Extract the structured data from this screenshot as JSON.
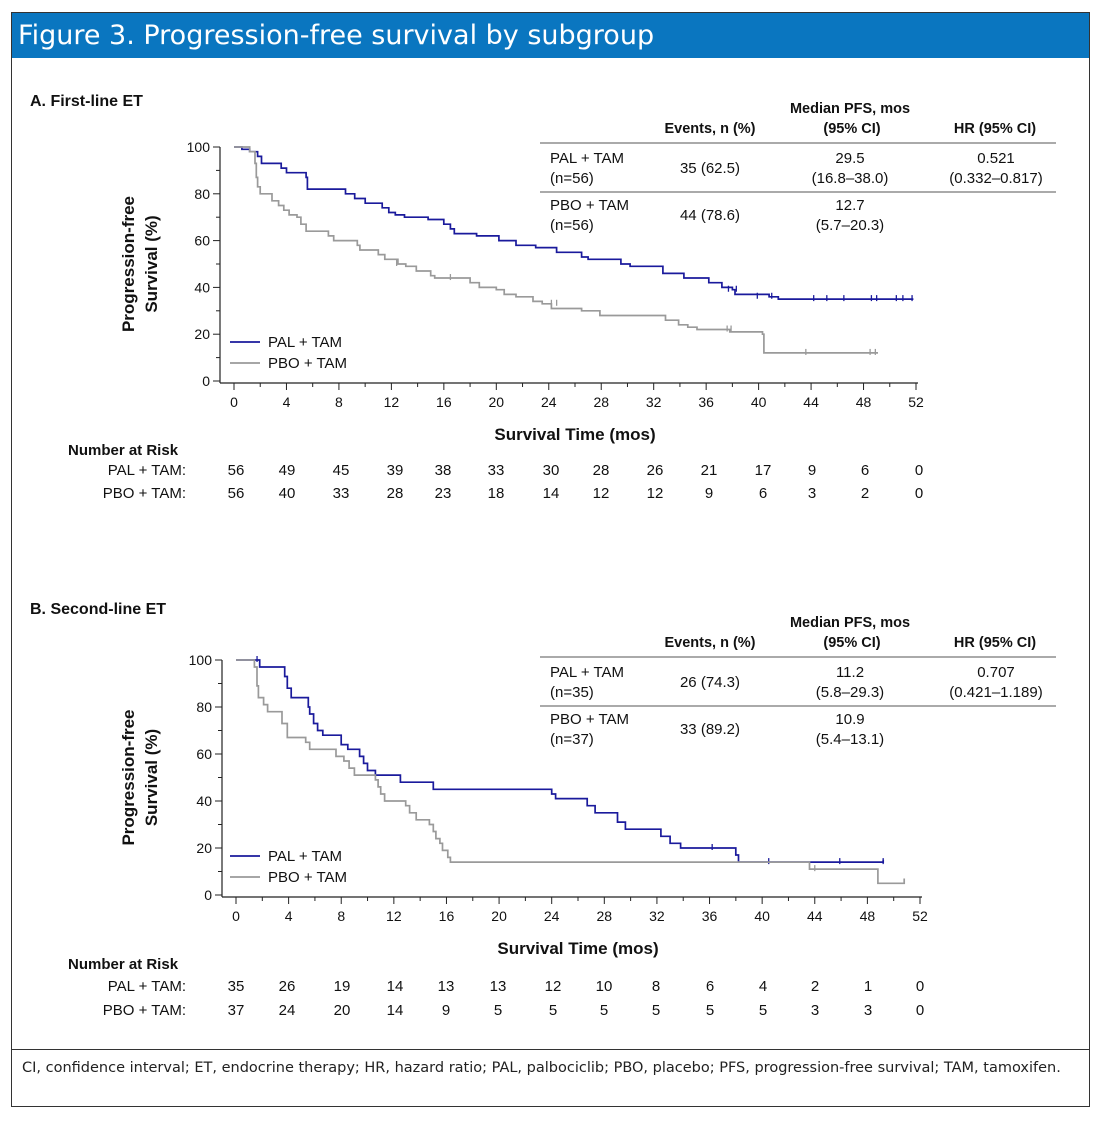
{
  "figure_title": "Figure 3. Progression-free survival by subgroup",
  "footnote": "CI, confidence interval; ET, endocrine therapy; HR, hazard ratio; PAL, palbociclib; PBO, placebo; PFS, progression-free survival; TAM, tamoxifen.",
  "colors": {
    "pal": "#1a1a9c",
    "pbo": "#9a9a9a",
    "header": "#0a76c0"
  },
  "chart_data": [
    {
      "type": "line",
      "panel_title": "A. First-line ET",
      "xlabel": "Survival Time (mos)",
      "ylabel_line1": "Progression-free",
      "ylabel_line2": "Survival (%)",
      "xlim": [
        0,
        52
      ],
      "ylim": [
        0,
        100
      ],
      "xticks": [
        0,
        4,
        8,
        12,
        16,
        20,
        24,
        28,
        32,
        36,
        40,
        44,
        48,
        52
      ],
      "yticks": [
        0,
        20,
        40,
        60,
        80,
        100
      ],
      "legend": [
        "PAL + TAM",
        "PBO + TAM"
      ],
      "table": {
        "headers": [
          "Events, n (%)",
          "Median PFS, mos",
          "(95% CI)",
          "HR (95% CI)"
        ],
        "rows": [
          {
            "arm": "PAL + TAM",
            "n": "(n=56)",
            "events": "35 (62.5)",
            "median": "29.5",
            "median_ci": "(16.8–38.0)",
            "hr": "0.521",
            "hr_ci": "(0.332–0.817)"
          },
          {
            "arm": "PBO + TAM",
            "n": "(n=56)",
            "events": "44 (78.6)",
            "median": "12.7",
            "median_ci": "(5.7–20.3)",
            "hr": "",
            "hr_ci": ""
          }
        ]
      },
      "risk": {
        "title": "Number at Risk",
        "rows": [
          {
            "label": "PAL + TAM:",
            "values": [
              "56",
              "49",
              "45",
              "39",
              "38",
              "33",
              "30",
              "28",
              "26",
              "21",
              "17",
              "9",
              "6",
              "0"
            ]
          },
          {
            "label": "PBO + TAM:",
            "values": [
              "56",
              "40",
              "33",
              "28",
              "23",
              "18",
              "14",
              "12",
              "12",
              "9",
              "6",
              "3",
              "2",
              "0"
            ]
          }
        ]
      },
      "series": [
        {
          "name": "PAL + TAM",
          "points": [
            [
              0,
              100
            ],
            [
              0.6,
              99
            ],
            [
              1.2,
              98
            ],
            [
              1.8,
              96
            ],
            [
              2.1,
              93
            ],
            [
              3.6,
              91
            ],
            [
              4,
              89
            ],
            [
              5.5,
              87
            ],
            [
              5.6,
              82
            ],
            [
              8.5,
              80
            ],
            [
              9.2,
              78
            ],
            [
              10,
              76
            ],
            [
              11.3,
              74
            ],
            [
              11.8,
              72
            ],
            [
              12.3,
              71
            ],
            [
              13,
              70
            ],
            [
              14.8,
              69
            ],
            [
              16,
              67
            ],
            [
              16.5,
              65
            ],
            [
              16.8,
              63
            ],
            [
              18.5,
              62
            ],
            [
              20.2,
              60
            ],
            [
              21.5,
              58
            ],
            [
              23,
              57
            ],
            [
              24.6,
              55
            ],
            [
              26.5,
              53
            ],
            [
              27,
              52
            ],
            [
              29.5,
              50
            ],
            [
              30.2,
              49
            ],
            [
              32.7,
              46
            ],
            [
              34.3,
              44
            ],
            [
              36.2,
              42
            ],
            [
              37.2,
              40
            ],
            [
              38,
              39
            ],
            [
              38.2,
              37
            ],
            [
              40.8,
              36
            ],
            [
              41.5,
              35
            ],
            [
              51.8,
              35
            ]
          ],
          "censors": [
            [
              37.7,
              39
            ],
            [
              38.3,
              39
            ],
            [
              39.9,
              36
            ],
            [
              41,
              36
            ],
            [
              44.2,
              35
            ],
            [
              45.2,
              35
            ],
            [
              46.5,
              35
            ],
            [
              48.6,
              35
            ],
            [
              49,
              35
            ],
            [
              50.5,
              35
            ],
            [
              51,
              35
            ],
            [
              51.7,
              35
            ]
          ]
        },
        {
          "name": "PBO + TAM",
          "points": [
            [
              0,
              100
            ],
            [
              1.2,
              98
            ],
            [
              1.6,
              93
            ],
            [
              1.7,
              87
            ],
            [
              1.8,
              83
            ],
            [
              2,
              80
            ],
            [
              2.9,
              77
            ],
            [
              3.4,
              75
            ],
            [
              3.8,
              73
            ],
            [
              4.2,
              71
            ],
            [
              4.8,
              70
            ],
            [
              5.1,
              67
            ],
            [
              5.5,
              64
            ],
            [
              7.2,
              62
            ],
            [
              7.6,
              60
            ],
            [
              9.4,
              58
            ],
            [
              9.6,
              56
            ],
            [
              11,
              54
            ],
            [
              11.5,
              52
            ],
            [
              12.5,
              50
            ],
            [
              13.1,
              49
            ],
            [
              13.9,
              47
            ],
            [
              15,
              45
            ],
            [
              15.3,
              44
            ],
            [
              18,
              42
            ],
            [
              18.7,
              40
            ],
            [
              20,
              39
            ],
            [
              20.6,
              37
            ],
            [
              21.5,
              36
            ],
            [
              22.8,
              34
            ],
            [
              23.5,
              33
            ],
            [
              24.2,
              31
            ],
            [
              26.5,
              30
            ],
            [
              27.9,
              28
            ],
            [
              32.9,
              26
            ],
            [
              33.9,
              24
            ],
            [
              34.6,
              23
            ],
            [
              35.3,
              22
            ],
            [
              37.8,
              21
            ],
            [
              40.3,
              20
            ],
            [
              40.4,
              12
            ],
            [
              49.1,
              12
            ]
          ],
          "censors": [
            [
              12.4,
              50
            ],
            [
              16.5,
              44
            ],
            [
              24.2,
              33
            ],
            [
              24.6,
              33
            ],
            [
              37.6,
              22
            ],
            [
              37.9,
              22
            ],
            [
              43.6,
              12
            ],
            [
              48.5,
              12
            ],
            [
              48.9,
              12
            ]
          ]
        }
      ]
    },
    {
      "type": "line",
      "panel_title": "B. Second-line ET",
      "xlabel": "Survival Time (mos)",
      "ylabel_line1": "Progression-free",
      "ylabel_line2": "Survival (%)",
      "xlim": [
        0,
        52
      ],
      "ylim": [
        0,
        100
      ],
      "xticks": [
        0,
        4,
        8,
        12,
        16,
        20,
        24,
        28,
        32,
        36,
        40,
        44,
        48,
        52
      ],
      "yticks": [
        0,
        20,
        40,
        60,
        80,
        100
      ],
      "legend": [
        "PAL + TAM",
        "PBO + TAM"
      ],
      "table": {
        "headers": [
          "Events, n (%)",
          "Median PFS, mos",
          "(95% CI)",
          "HR (95% CI)"
        ],
        "rows": [
          {
            "arm": "PAL + TAM",
            "n": "(n=35)",
            "events": "26 (74.3)",
            "median": "11.2",
            "median_ci": "(5.8–29.3)",
            "hr": "0.707",
            "hr_ci": "(0.421–1.189)"
          },
          {
            "arm": "PBO + TAM",
            "n": "(n=37)",
            "events": "33 (89.2)",
            "median": "10.9",
            "median_ci": "(5.4–13.1)",
            "hr": "",
            "hr_ci": ""
          }
        ]
      },
      "risk": {
        "title": "Number at Risk",
        "rows": [
          {
            "label": "PAL + TAM:",
            "values": [
              "35",
              "26",
              "19",
              "14",
              "13",
              "13",
              "12",
              "10",
              "8",
              "6",
              "4",
              "2",
              "1",
              "0"
            ]
          },
          {
            "label": "PBO + TAM:",
            "values": [
              "37",
              "24",
              "20",
              "14",
              "9",
              "5",
              "5",
              "5",
              "5",
              "5",
              "5",
              "3",
              "3",
              "0"
            ]
          }
        ]
      },
      "series": [
        {
          "name": "PAL + TAM",
          "points": [
            [
              0,
              100
            ],
            [
              1.6,
              100
            ],
            [
              1.8,
              97
            ],
            [
              3.7,
              93
            ],
            [
              3.9,
              88
            ],
            [
              4.2,
              84
            ],
            [
              5.5,
              80
            ],
            [
              5.6,
              77
            ],
            [
              5.9,
              73
            ],
            [
              6.2,
              70
            ],
            [
              6.6,
              68
            ],
            [
              8,
              64
            ],
            [
              8.5,
              62
            ],
            [
              9.4,
              59
            ],
            [
              9.7,
              56
            ],
            [
              10,
              53
            ],
            [
              10.6,
              51
            ],
            [
              12.5,
              48
            ],
            [
              15,
              45
            ],
            [
              24,
              43
            ],
            [
              24.3,
              41
            ],
            [
              26.7,
              38
            ],
            [
              27.3,
              35
            ],
            [
              29,
              31
            ],
            [
              29.6,
              28
            ],
            [
              32.3,
              25
            ],
            [
              33,
              22
            ],
            [
              33.8,
              20
            ],
            [
              38,
              17
            ],
            [
              38.2,
              14
            ],
            [
              49.2,
              15
            ]
          ],
          "censors": [
            [
              1.6,
              100
            ],
            [
              36.2,
              20
            ],
            [
              40.5,
              14
            ],
            [
              45.9,
              14
            ],
            [
              49.2,
              14
            ]
          ]
        },
        {
          "name": "PBO + TAM",
          "points": [
            [
              0,
              100
            ],
            [
              1.4,
              97
            ],
            [
              1.6,
              89
            ],
            [
              1.7,
              84
            ],
            [
              2.1,
              81
            ],
            [
              2.4,
              78
            ],
            [
              3.5,
              73
            ],
            [
              3.9,
              67
            ],
            [
              5.3,
              65
            ],
            [
              5.6,
              62
            ],
            [
              7.6,
              59
            ],
            [
              8.2,
              57
            ],
            [
              8.6,
              54
            ],
            [
              9,
              51
            ],
            [
              10.6,
              49
            ],
            [
              10.8,
              46
            ],
            [
              11,
              43
            ],
            [
              11.3,
              40
            ],
            [
              12.9,
              38
            ],
            [
              13.2,
              35
            ],
            [
              13.7,
              32
            ],
            [
              14.7,
              30
            ],
            [
              15,
              27
            ],
            [
              15.2,
              24
            ],
            [
              15.5,
              22
            ],
            [
              15.7,
              19
            ],
            [
              16.1,
              16
            ],
            [
              16.3,
              14
            ],
            [
              43.4,
              14
            ],
            [
              43.6,
              11
            ],
            [
              48.6,
              11
            ],
            [
              48.8,
              5
            ],
            [
              50.7,
              5
            ],
            [
              50.8,
              7
            ]
          ],
          "censors": [
            [
              44,
              11
            ]
          ]
        }
      ]
    }
  ]
}
